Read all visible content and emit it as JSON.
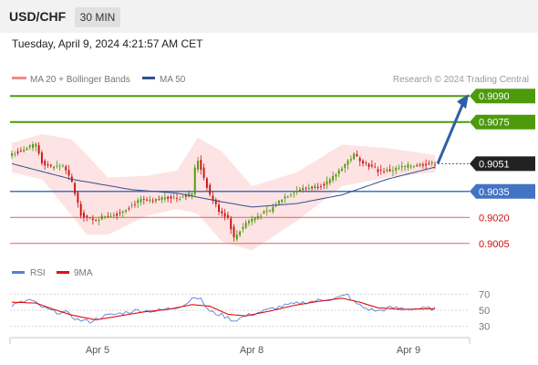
{
  "header": {
    "symbol": "USD/CHF",
    "timeframe": "30 MIN"
  },
  "timestamp": "Tuesday, April 9, 2024 4:21:57 AM CET",
  "legend": {
    "bollinger": "MA 20 + Bollinger Bands",
    "ma50": "MA 50",
    "credit": "Research © 2024 Trading Central",
    "rsi": "RSI",
    "rsi_ma": "9MA"
  },
  "colors": {
    "resistance": "#4d9a0b",
    "support": "#4472c4",
    "pivot_support": "#e06060",
    "bull_candle": "#4d9a0b",
    "bear_candle": "#cc1111",
    "bollinger_fill": "#fde3e3",
    "ma50": "#2f4f8f",
    "rsi": "#5b7fd6",
    "rsi_ma": "#dd1111",
    "arrow": "#2f5fa7"
  },
  "chart_data": [
    {
      "type": "candlestick",
      "title": "USD/CHF 30 MIN",
      "x_tick_labels": [
        "Apr 5",
        "Apr 8",
        "Apr 9"
      ],
      "ylim": [
        8997,
        9098
      ],
      "levels": [
        {
          "label": "0.9090",
          "value": 9090,
          "style": "resistance"
        },
        {
          "label": "0.9075",
          "value": 9075,
          "style": "resistance"
        },
        {
          "label": "0.9051",
          "value": 9051,
          "style": "last"
        },
        {
          "label": "0.9035",
          "value": 9035,
          "style": "support"
        },
        {
          "label": "0.9020",
          "value": 9020,
          "style": "pivot"
        },
        {
          "label": "0.9005",
          "value": 9005,
          "style": "pivot"
        }
      ],
      "forecast": {
        "from": 9051,
        "to": 9090
      },
      "close_anchors": [
        [
          0,
          9057
        ],
        [
          4,
          9059
        ],
        [
          8,
          9062
        ],
        [
          10,
          9052
        ],
        [
          13,
          9049
        ],
        [
          17,
          9050
        ],
        [
          20,
          9040
        ],
        [
          23,
          9022
        ],
        [
          27,
          9018
        ],
        [
          31,
          9021
        ],
        [
          35,
          9022
        ],
        [
          39,
          9026
        ],
        [
          43,
          9030
        ],
        [
          47,
          9029
        ],
        [
          51,
          9032
        ],
        [
          55,
          9031
        ],
        [
          60,
          9034
        ],
        [
          61,
          9048
        ],
        [
          62,
          9053
        ],
        [
          66,
          9033
        ],
        [
          69,
          9024
        ],
        [
          72,
          9020
        ],
        [
          74,
          9008
        ],
        [
          78,
          9017
        ],
        [
          82,
          9021
        ],
        [
          86,
          9024
        ],
        [
          90,
          9031
        ],
        [
          94,
          9035
        ],
        [
          98,
          9037
        ],
        [
          102,
          9038
        ],
        [
          106,
          9041
        ],
        [
          110,
          9049
        ],
        [
          114,
          9056
        ],
        [
          118,
          9051
        ],
        [
          122,
          9047
        ],
        [
          126,
          9047
        ],
        [
          130,
          9049
        ],
        [
          134,
          9050
        ],
        [
          138,
          9051
        ],
        [
          141,
          9051
        ]
      ],
      "ma50_anchors": [
        [
          0,
          9051
        ],
        [
          20,
          9042
        ],
        [
          40,
          9036
        ],
        [
          55,
          9034
        ],
        [
          70,
          9029
        ],
        [
          80,
          9026
        ],
        [
          95,
          9028
        ],
        [
          110,
          9033
        ],
        [
          125,
          9042
        ],
        [
          141,
          9049
        ]
      ],
      "bollinger_upper_anchors": [
        [
          0,
          9063
        ],
        [
          10,
          9068
        ],
        [
          20,
          9065
        ],
        [
          25,
          9056
        ],
        [
          32,
          9043
        ],
        [
          45,
          9044
        ],
        [
          55,
          9047
        ],
        [
          62,
          9066
        ],
        [
          70,
          9058
        ],
        [
          80,
          9038
        ],
        [
          95,
          9046
        ],
        [
          110,
          9062
        ],
        [
          125,
          9060
        ],
        [
          141,
          9056
        ]
      ],
      "bollinger_lower_anchors": [
        [
          0,
          9046
        ],
        [
          10,
          9042
        ],
        [
          20,
          9021
        ],
        [
          25,
          9010
        ],
        [
          32,
          9010
        ],
        [
          45,
          9021
        ],
        [
          55,
          9025
        ],
        [
          62,
          9022
        ],
        [
          70,
          9006
        ],
        [
          80,
          9001
        ],
        [
          95,
          9018
        ],
        [
          110,
          9038
        ],
        [
          125,
          9043
        ],
        [
          141,
          9046
        ]
      ]
    },
    {
      "type": "line",
      "title": "RSI",
      "y_tick_labels": [
        "70",
        "50",
        "30"
      ],
      "ylim": [
        25,
        75
      ],
      "rsi_anchors": [
        [
          0,
          56
        ],
        [
          6,
          63
        ],
        [
          10,
          54
        ],
        [
          14,
          48
        ],
        [
          18,
          47
        ],
        [
          22,
          38
        ],
        [
          26,
          36
        ],
        [
          30,
          42
        ],
        [
          36,
          46
        ],
        [
          42,
          50
        ],
        [
          48,
          49
        ],
        [
          54,
          53
        ],
        [
          58,
          58
        ],
        [
          61,
          68
        ],
        [
          63,
          63
        ],
        [
          66,
          48
        ],
        [
          70,
          44
        ],
        [
          74,
          37
        ],
        [
          78,
          43
        ],
        [
          84,
          49
        ],
        [
          90,
          55
        ],
        [
          96,
          59
        ],
        [
          102,
          62
        ],
        [
          108,
          65
        ],
        [
          112,
          69
        ],
        [
          114,
          60
        ],
        [
          118,
          52
        ],
        [
          122,
          49
        ],
        [
          126,
          53
        ],
        [
          132,
          52
        ],
        [
          141,
          52
        ]
      ],
      "rsi_ma_anchors": [
        [
          0,
          60
        ],
        [
          8,
          59
        ],
        [
          14,
          51
        ],
        [
          20,
          44
        ],
        [
          28,
          38
        ],
        [
          36,
          43
        ],
        [
          44,
          48
        ],
        [
          52,
          51
        ],
        [
          60,
          57
        ],
        [
          66,
          55
        ],
        [
          72,
          45
        ],
        [
          78,
          43
        ],
        [
          86,
          49
        ],
        [
          94,
          56
        ],
        [
          102,
          61
        ],
        [
          110,
          65
        ],
        [
          116,
          60
        ],
        [
          122,
          53
        ],
        [
          130,
          51
        ],
        [
          141,
          52
        ]
      ]
    }
  ]
}
